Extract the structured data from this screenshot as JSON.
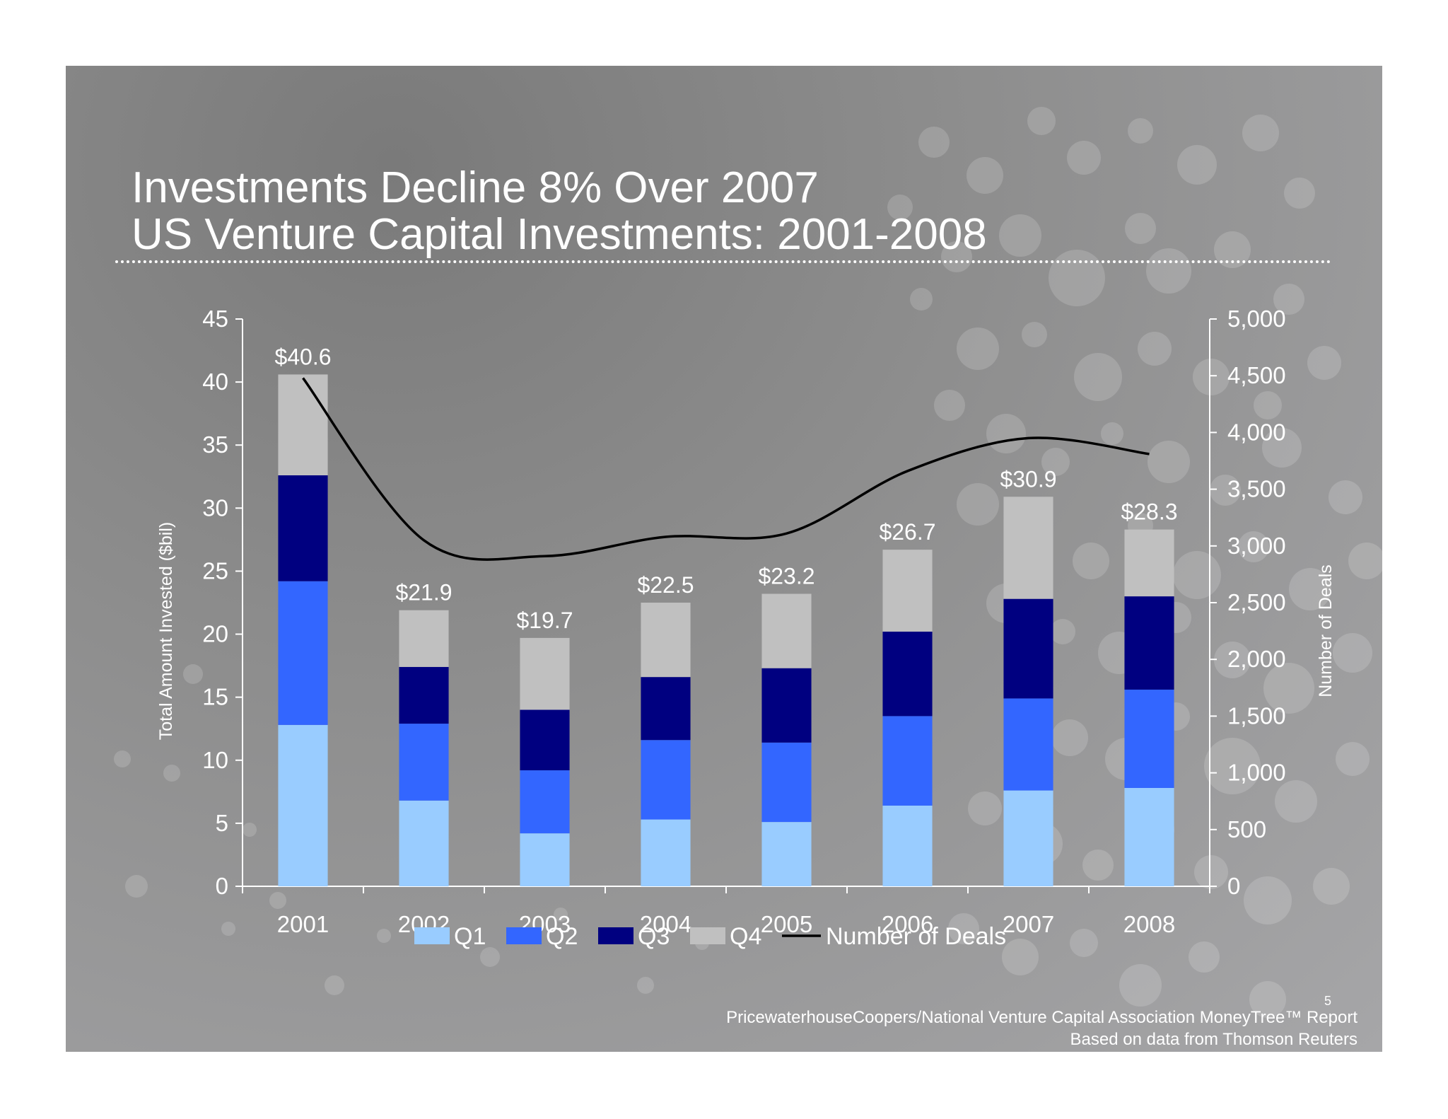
{
  "slide": {
    "title_line1": "Investments Decline 8% Over 2007",
    "title_line2": "US Venture Capital Investments: 2001-2008",
    "page_number": "5",
    "source_line1": "PricewaterhouseCoopers/National Venture Capital Association MoneyTree™ Report",
    "source_line2": "Based on data from Thomson Reuters"
  },
  "chart_data": {
    "type": "bar",
    "stacked": true,
    "title": "US Venture Capital Investments: 2001-2008",
    "categories": [
      "2001",
      "2002",
      "2003",
      "2004",
      "2005",
      "2006",
      "2007",
      "2008"
    ],
    "series": [
      {
        "name": "Q1",
        "color": "#99ccff",
        "values": [
          12.8,
          6.8,
          4.2,
          5.3,
          5.1,
          6.4,
          7.6,
          7.8
        ]
      },
      {
        "name": "Q2",
        "color": "#3366ff",
        "values": [
          11.4,
          6.1,
          5.0,
          6.3,
          6.3,
          7.1,
          7.3,
          7.8
        ]
      },
      {
        "name": "Q3",
        "color": "#000080",
        "values": [
          8.4,
          4.5,
          4.8,
          5.0,
          5.9,
          6.7,
          7.9,
          7.4
        ]
      },
      {
        "name": "Q4",
        "color": "#c0c0c0",
        "values": [
          8.0,
          4.5,
          5.7,
          5.9,
          5.9,
          6.5,
          8.1,
          5.3
        ]
      }
    ],
    "totals_labels": [
      "$40.6",
      "$21.9",
      "$19.7",
      "$22.5",
      "$23.2",
      "$26.7",
      "$30.9",
      "$28.3"
    ],
    "line_series": {
      "name": "Number of Deals",
      "color": "#000000",
      "axis": "right",
      "values": [
        4480,
        3050,
        2910,
        3080,
        3110,
        3660,
        3950,
        3810
      ]
    },
    "ylabel": "Total Amount Invested ($bil)",
    "ylim": [
      0,
      45
    ],
    "y_ticks": [
      "0",
      "5",
      "10",
      "15",
      "20",
      "25",
      "30",
      "35",
      "40",
      "45"
    ],
    "y2label": "Number of Deals",
    "y2lim": [
      0,
      5000
    ],
    "y2_ticks": [
      "0",
      "500",
      "1,000",
      "1,500",
      "2,000",
      "2,500",
      "3,000",
      "3,500",
      "4,000",
      "4,500",
      "5,000"
    ],
    "legend_position": "bottom",
    "grid": false
  }
}
